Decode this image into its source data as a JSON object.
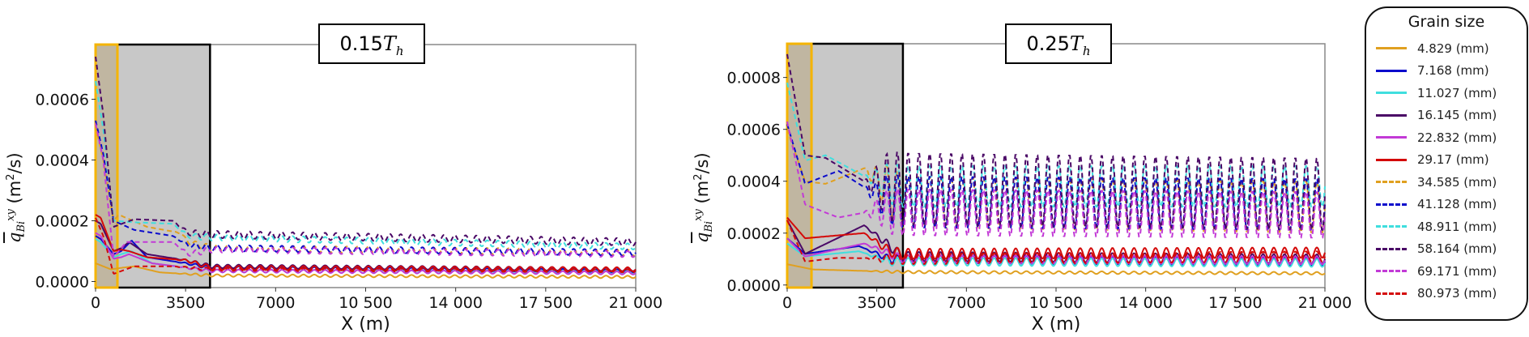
{
  "legend": {
    "title": "Grain size",
    "items": [
      {
        "label": "4.829 (mm)",
        "color": "#e0a020",
        "style": "solid"
      },
      {
        "label": "7.168 (mm)",
        "color": "#0a0acc",
        "style": "solid"
      },
      {
        "label": "11.027 (mm)",
        "color": "#3fdede",
        "style": "solid"
      },
      {
        "label": "16.145 (mm)",
        "color": "#4a0866",
        "style": "solid"
      },
      {
        "label": "22.832 (mm)",
        "color": "#c23ad6",
        "style": "solid"
      },
      {
        "label": "29.17 (mm)",
        "color": "#d40a0a",
        "style": "solid"
      },
      {
        "label": "34.585 (mm)",
        "color": "#e0a020",
        "style": "dashed"
      },
      {
        "label": "41.128 (mm)",
        "color": "#0a0acc",
        "style": "dashed"
      },
      {
        "label": "48.911 (mm)",
        "color": "#3fdede",
        "style": "dashed"
      },
      {
        "label": "58.164 (mm)",
        "color": "#4a0866",
        "style": "dashed"
      },
      {
        "label": "69.171 (mm)",
        "color": "#c23ad6",
        "style": "dashed"
      },
      {
        "label": "80.973 (mm)",
        "color": "#d40a0a",
        "style": "dashed"
      }
    ]
  },
  "chart_data": [
    {
      "type": "line",
      "title": {
        "prefix": "0.15",
        "symbol": "T",
        "subscript": "h"
      },
      "xlabel": "X (m)",
      "ylabel": {
        "symbol": "q",
        "subscript": "Bi",
        "superscript": "xy",
        "unit": "(m",
        "unit_sup": "2",
        "unit_end": "/s)"
      },
      "xlim": [
        0,
        21000
      ],
      "ylim": [
        -2e-05,
        0.00078
      ],
      "xticks": [
        0,
        3500,
        7000,
        10500,
        14000,
        17500,
        21000
      ],
      "xtick_labels": [
        "0",
        "3500",
        "7000",
        "10 500",
        "14 000",
        "17 500",
        "21 000"
      ],
      "yticks": [
        0,
        0.0002,
        0.0004,
        0.0006
      ],
      "ytick_labels": [
        "0.0000",
        "0.0002",
        "0.0004",
        "0.0006"
      ],
      "highlight_regions": [
        {
          "kind": "shaded",
          "x": [
            0,
            4450
          ],
          "fill": "#c8c8c8",
          "edge": "#000000"
        },
        {
          "kind": "inlet",
          "x": [
            0,
            850
          ],
          "fill": "#bfb49c",
          "edge": "#f5b400"
        }
      ],
      "oscillation_period_m": 420,
      "series": [
        {
          "name": "4.829 (mm)",
          "amp": 4e-06,
          "points": [
            [
              0,
              6e-05
            ],
            [
              300,
              5e-05
            ],
            [
              600,
              4e-05
            ],
            [
              1000,
              4.5e-05
            ],
            [
              1500,
              5e-05
            ],
            [
              2500,
              3e-05
            ],
            [
              4500,
              2e-05
            ],
            [
              21000,
              1.5e-05
            ]
          ]
        },
        {
          "name": "7.168 (mm)",
          "amp": 5e-06,
          "points": [
            [
              0,
              0.00015
            ],
            [
              200,
              0.00014
            ],
            [
              700,
              9e-05
            ],
            [
              1000,
              0.0001
            ],
            [
              1400,
              0.000135
            ],
            [
              2000,
              8e-05
            ],
            [
              3500,
              6e-05
            ],
            [
              4500,
              4.5e-05
            ],
            [
              21000,
              3.5e-05
            ]
          ]
        },
        {
          "name": "11.027 (mm)",
          "amp": 5e-06,
          "points": [
            [
              0,
              0.00014
            ],
            [
              200,
              0.00013
            ],
            [
              700,
              8e-05
            ],
            [
              1000,
              9e-05
            ],
            [
              1400,
              0.0001
            ],
            [
              2200,
              6e-05
            ],
            [
              4500,
              3.5e-05
            ],
            [
              21000,
              3e-05
            ]
          ]
        },
        {
          "name": "16.145 (mm)",
          "amp": 6e-06,
          "points": [
            [
              0,
              0.0002
            ],
            [
              200,
              0.00019
            ],
            [
              700,
              0.0001
            ],
            [
              1000,
              0.00011
            ],
            [
              1300,
              0.00013
            ],
            [
              2000,
              9e-05
            ],
            [
              3500,
              7e-05
            ],
            [
              4500,
              5e-05
            ],
            [
              21000,
              4e-05
            ]
          ]
        },
        {
          "name": "22.832 (mm)",
          "amp": 5e-06,
          "points": [
            [
              0,
              0.00016
            ],
            [
              200,
              0.00015
            ],
            [
              700,
              7.5e-05
            ],
            [
              1000,
              8e-05
            ],
            [
              1300,
              9e-05
            ],
            [
              2200,
              6e-05
            ],
            [
              4500,
              3.5e-05
            ],
            [
              21000,
              2.8e-05
            ]
          ]
        },
        {
          "name": "29.17 (mm)",
          "amp": 7e-06,
          "points": [
            [
              0,
              0.00022
            ],
            [
              200,
              0.00021
            ],
            [
              700,
              0.0001
            ],
            [
              1000,
              0.000105
            ],
            [
              1300,
              0.0001
            ],
            [
              2000,
              8e-05
            ],
            [
              3500,
              7e-05
            ],
            [
              4500,
              4.5e-05
            ],
            [
              21000,
              4e-05
            ]
          ]
        },
        {
          "name": "34.585 (mm)",
          "amp": 1e-05,
          "points": [
            [
              0,
              0.00051
            ],
            [
              300,
              0.0004
            ],
            [
              700,
              0.0002
            ],
            [
              900,
              0.00022
            ],
            [
              2000,
              0.00018
            ],
            [
              3300,
              0.00016
            ],
            [
              3600,
              0.00013
            ],
            [
              4500,
              0.00011
            ],
            [
              21000,
              9.5e-05
            ]
          ]
        },
        {
          "name": "41.128 (mm)",
          "amp": 1e-05,
          "points": [
            [
              0,
              0.00053
            ],
            [
              300,
              0.00042
            ],
            [
              700,
              0.0002
            ],
            [
              1500,
              0.00017
            ],
            [
              3000,
              0.00015
            ],
            [
              3600,
              0.00012
            ],
            [
              4500,
              0.00011
            ],
            [
              21000,
              9.5e-05
            ]
          ]
        },
        {
          "name": "48.911 (mm)",
          "amp": 1e-05,
          "points": [
            [
              0,
              0.00066
            ],
            [
              300,
              0.0005
            ],
            [
              700,
              0.0002
            ],
            [
              1500,
              0.000195
            ],
            [
              3000,
              0.00019
            ],
            [
              3600,
              0.00015
            ],
            [
              4500,
              0.000145
            ],
            [
              21000,
              0.000115
            ]
          ]
        },
        {
          "name": "58.164 (mm)",
          "amp": 1.2e-05,
          "points": [
            [
              0,
              0.00074
            ],
            [
              300,
              0.00055
            ],
            [
              700,
              0.00018
            ],
            [
              1500,
              0.000205
            ],
            [
              3000,
              0.0002
            ],
            [
              3600,
              0.00016
            ],
            [
              4500,
              0.000155
            ],
            [
              21000,
              0.00013
            ]
          ]
        },
        {
          "name": "69.171 (mm)",
          "amp": 1e-05,
          "points": [
            [
              0,
              0.00052
            ],
            [
              300,
              0.0004
            ],
            [
              700,
              8e-05
            ],
            [
              1200,
              0.00013
            ],
            [
              3000,
              0.00013
            ],
            [
              3600,
              9e-05
            ],
            [
              4500,
              0.000105
            ],
            [
              21000,
              9e-05
            ]
          ]
        },
        {
          "name": "80.973 (mm)",
          "amp": 5e-06,
          "points": [
            [
              0,
              0.00021
            ],
            [
              300,
              0.00015
            ],
            [
              700,
              2.5e-05
            ],
            [
              1500,
              5e-05
            ],
            [
              3000,
              5e-05
            ],
            [
              4500,
              4e-05
            ],
            [
              21000,
              3.5e-05
            ]
          ]
        }
      ]
    },
    {
      "type": "line",
      "title": {
        "prefix": "0.25",
        "symbol": "T",
        "subscript": "h"
      },
      "xlabel": "X (m)",
      "ylabel": {
        "symbol": "q",
        "subscript": "Bi",
        "superscript": "xy",
        "unit": "(m",
        "unit_sup": "2",
        "unit_end": "/s)"
      },
      "xlim": [
        0,
        21000
      ],
      "ylim": [
        -1e-05,
        0.00093
      ],
      "xticks": [
        0,
        3500,
        7000,
        10500,
        14000,
        17500,
        21000
      ],
      "xtick_labels": [
        "0",
        "3500",
        "7000",
        "10 500",
        "14 000",
        "17 500",
        "21 000"
      ],
      "yticks": [
        0,
        0.0002,
        0.0004,
        0.0006,
        0.0008
      ],
      "ytick_labels": [
        "0.0000",
        "0.0002",
        "0.0004",
        "0.0006",
        "0.0008"
      ],
      "highlight_regions": [
        {
          "kind": "shaded",
          "x": [
            0,
            4520
          ],
          "fill": "#c8c8c8",
          "edge": "#000000"
        },
        {
          "kind": "inlet",
          "x": [
            0,
            950
          ],
          "fill": "#bfb49c",
          "edge": "#f5b400"
        }
      ],
      "oscillation_period_m": 420,
      "series": [
        {
          "name": "4.829 (mm)",
          "amp": 5e-06,
          "points": [
            [
              0,
              8e-05
            ],
            [
              1000,
              6e-05
            ],
            [
              4500,
              5e-05
            ],
            [
              21000,
              4.5e-05
            ]
          ]
        },
        {
          "name": "7.168 (mm)",
          "amp": 1.5e-05,
          "points": [
            [
              0,
              0.00018
            ],
            [
              700,
              0.00012
            ],
            [
              2800,
              0.00015
            ],
            [
              4000,
              0.0001
            ],
            [
              21000,
              9e-05
            ]
          ]
        },
        {
          "name": "11.027 (mm)",
          "amp": 1.5e-05,
          "points": [
            [
              0,
              0.00016
            ],
            [
              700,
              0.00011
            ],
            [
              2800,
              0.00013
            ],
            [
              4000,
              9e-05
            ],
            [
              21000,
              8.5e-05
            ]
          ]
        },
        {
          "name": "16.145 (mm)",
          "amp": 1.8e-05,
          "points": [
            [
              0,
              0.00025
            ],
            [
              700,
              0.00012
            ],
            [
              3000,
              0.00023
            ],
            [
              4500,
              0.00011
            ],
            [
              21000,
              0.0001
            ]
          ]
        },
        {
          "name": "22.832 (mm)",
          "amp": 1.5e-05,
          "points": [
            [
              0,
              0.00018
            ],
            [
              700,
              0.00011
            ],
            [
              3000,
              0.00016
            ],
            [
              4500,
              0.0001
            ],
            [
              21000,
              9.5e-05
            ]
          ]
        },
        {
          "name": "29.17 (mm)",
          "amp": 2e-05,
          "points": [
            [
              0,
              0.00026
            ],
            [
              700,
              0.00018
            ],
            [
              3000,
              0.0002
            ],
            [
              4000,
              0.00013
            ],
            [
              4500,
              0.00012
            ],
            [
              21000,
              0.000125
            ]
          ]
        },
        {
          "name": "34.585 (mm)",
          "amp": 0.0001,
          "points": [
            [
              0,
              0.0006
            ],
            [
              700,
              0.0004
            ],
            [
              1500,
              0.00039
            ],
            [
              3000,
              0.00045
            ],
            [
              4500,
              0.00032
            ],
            [
              21000,
              0.0003
            ]
          ]
        },
        {
          "name": "41.128 (mm)",
          "amp": 0.0001,
          "points": [
            [
              0,
              0.00062
            ],
            [
              700,
              0.00039
            ],
            [
              2000,
              0.00044
            ],
            [
              3600,
              0.00034
            ],
            [
              4500,
              0.00032
            ],
            [
              21000,
              0.00031
            ]
          ]
        },
        {
          "name": "48.911 (mm)",
          "amp": 8e-05,
          "points": [
            [
              0,
              0.00078
            ],
            [
              700,
              0.00048
            ],
            [
              1500,
              0.0005
            ],
            [
              3000,
              0.00042
            ],
            [
              4500,
              0.00038
            ],
            [
              21000,
              0.00038
            ]
          ]
        },
        {
          "name": "58.164 (mm)",
          "amp": 0.00014,
          "points": [
            [
              0,
              0.00089
            ],
            [
              700,
              0.0005
            ],
            [
              1500,
              0.00049
            ],
            [
              3000,
              0.0004
            ],
            [
              4500,
              0.00037
            ],
            [
              21000,
              0.00035
            ]
          ]
        },
        {
          "name": "69.171 (mm)",
          "amp": 9e-05,
          "points": [
            [
              0,
              0.00063
            ],
            [
              700,
              0.00031
            ],
            [
              2000,
              0.00026
            ],
            [
              3600,
              0.00029
            ],
            [
              4500,
              0.00028
            ],
            [
              21000,
              0.00027
            ]
          ]
        },
        {
          "name": "80.973 (mm)",
          "amp": 2e-05,
          "points": [
            [
              0,
              0.00025
            ],
            [
              700,
              9e-05
            ],
            [
              2000,
              0.000105
            ],
            [
              4500,
              0.0001
            ],
            [
              21000,
              0.00011
            ]
          ]
        }
      ]
    }
  ]
}
